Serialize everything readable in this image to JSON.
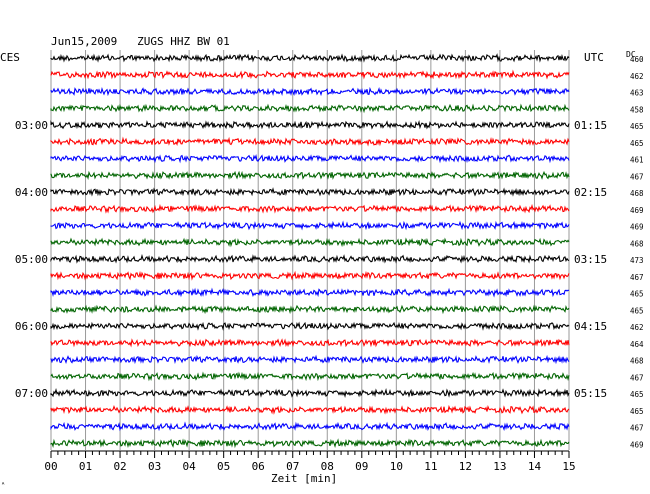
{
  "header": {
    "title": "Jun15,2009   ZUGS HHZ BW 01",
    "left_unit": "CES",
    "right_unit": "UTC",
    "dc_label": "DC",
    "corner_mark": "ᴬ"
  },
  "chart_data": {
    "type": "line",
    "title": "Jun15,2009   ZUGS HHZ BW 01",
    "xlabel": "Zeit [min]",
    "xlim": [
      0,
      15
    ],
    "x_ticks": [
      "00",
      "01",
      "02",
      "03",
      "04",
      "05",
      "06",
      "07",
      "08",
      "09",
      "10",
      "11",
      "12",
      "13",
      "14",
      "15"
    ],
    "trace_colors": [
      "#000000",
      "#ff0000",
      "#0000ff",
      "#006400"
    ],
    "grid": true,
    "left_time_labels": [
      {
        "row": 4,
        "text": "03:00"
      },
      {
        "row": 8,
        "text": "04:00"
      },
      {
        "row": 12,
        "text": "05:00"
      },
      {
        "row": 16,
        "text": "06:00"
      },
      {
        "row": 20,
        "text": "07:00"
      }
    ],
    "right_time_labels": [
      {
        "row": 4,
        "text": "01:15"
      },
      {
        "row": 8,
        "text": "02:15"
      },
      {
        "row": 12,
        "text": "03:15"
      },
      {
        "row": 16,
        "text": "04:15"
      },
      {
        "row": 20,
        "text": "05:15"
      }
    ],
    "dc_values": [
      460,
      462,
      463,
      458,
      465,
      465,
      461,
      467,
      468,
      469,
      469,
      468,
      473,
      467,
      465,
      465,
      462,
      464,
      468,
      467,
      465,
      465,
      467,
      469
    ]
  }
}
